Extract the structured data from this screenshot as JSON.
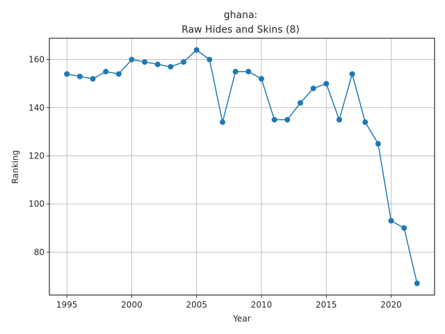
{
  "chart_data": {
    "type": "line",
    "title_lines": [
      "ghana:",
      "Raw Hides and Skins (8)"
    ],
    "xlabel": "Year",
    "ylabel": "Ranking",
    "xlim": [
      1993.65,
      2023.35
    ],
    "ylim": [
      62.15,
      168.85
    ],
    "xticks": [
      1995,
      2000,
      2005,
      2010,
      2015,
      2020
    ],
    "yticks": [
      80,
      100,
      120,
      140,
      160
    ],
    "grid": true,
    "color": "#1f77b4",
    "marker": "circle",
    "x": [
      1995,
      1996,
      1997,
      1998,
      1999,
      2000,
      2001,
      2002,
      2003,
      2004,
      2005,
      2006,
      2007,
      2008,
      2009,
      2010,
      2011,
      2012,
      2013,
      2014,
      2015,
      2016,
      2017,
      2018,
      2019,
      2020,
      2021,
      2022
    ],
    "values": [
      154,
      153,
      152,
      155,
      154,
      160,
      159,
      158,
      157,
      159,
      164,
      160,
      134,
      155,
      155,
      152,
      135,
      135,
      142,
      148,
      150,
      135,
      154,
      134,
      125,
      93,
      90,
      67
    ]
  }
}
